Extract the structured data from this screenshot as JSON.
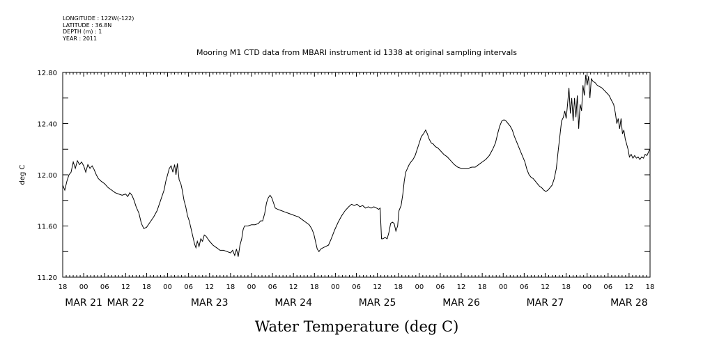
{
  "metadata": {
    "longitude": "LONGITUDE : 122W(-122)",
    "latitude": "LATITUDE : 36.8N",
    "depth": "DEPTH (m) : 1",
    "year": "YEAR : 2011"
  },
  "chart_data": {
    "type": "line",
    "title": "Mooring M1 CTD data from MBARI instrument id 1338 at original sampling intervals",
    "xlabel": "Water Temperature (deg C)",
    "ylabel": "deg C",
    "ylim": [
      11.2,
      12.8
    ],
    "yticks": [
      "11.20",
      "11.60",
      "12.00",
      "12.40",
      "12.80"
    ],
    "x_unit": "hours since MAR 20 18:00",
    "xlim": [
      0,
      168
    ],
    "hour_ticks": [
      "18",
      "00",
      "06",
      "12",
      "18",
      "00",
      "06",
      "12",
      "18",
      "00",
      "06",
      "12",
      "18",
      "00",
      "06",
      "12",
      "18",
      "00",
      "06",
      "12",
      "18",
      "00",
      "06",
      "12",
      "18",
      "00",
      "06",
      "12",
      "18"
    ],
    "date_labels": [
      {
        "label": "MAR 21",
        "hour": 6
      },
      {
        "label": "MAR 22",
        "hour": 18
      },
      {
        "label": "MAR 23",
        "hour": 42
      },
      {
        "label": "MAR 24",
        "hour": 66
      },
      {
        "label": "MAR 25",
        "hour": 90
      },
      {
        "label": "MAR 26",
        "hour": 114
      },
      {
        "label": "MAR 27",
        "hour": 138
      },
      {
        "label": "MAR 28",
        "hour": 162
      }
    ],
    "series": [
      {
        "values": [
          [
            0,
            11.92
          ],
          [
            0.6,
            11.88
          ],
          [
            1.2,
            11.95
          ],
          [
            1.8,
            12.0
          ],
          [
            2.4,
            12.02
          ],
          [
            3,
            12.1
          ],
          [
            3.6,
            12.05
          ],
          [
            4.2,
            12.11
          ],
          [
            4.8,
            12.08
          ],
          [
            5.4,
            12.1
          ],
          [
            6,
            12.07
          ],
          [
            6.6,
            12.02
          ],
          [
            7.2,
            12.08
          ],
          [
            7.8,
            12.05
          ],
          [
            8.4,
            12.07
          ],
          [
            9,
            12.04
          ],
          [
            9.6,
            12.0
          ],
          [
            10.2,
            11.97
          ],
          [
            11,
            11.95
          ],
          [
            12,
            11.93
          ],
          [
            13,
            11.9
          ],
          [
            14,
            11.88
          ],
          [
            15,
            11.86
          ],
          [
            16,
            11.85
          ],
          [
            17,
            11.84
          ],
          [
            18,
            11.85
          ],
          [
            18.6,
            11.83
          ],
          [
            19.2,
            11.86
          ],
          [
            19.8,
            11.84
          ],
          [
            20.4,
            11.8
          ],
          [
            21,
            11.75
          ],
          [
            21.8,
            11.7
          ],
          [
            22.5,
            11.62
          ],
          [
            23.2,
            11.58
          ],
          [
            24,
            11.59
          ],
          [
            25,
            11.63
          ],
          [
            26,
            11.67
          ],
          [
            27,
            11.72
          ],
          [
            28,
            11.8
          ],
          [
            29,
            11.88
          ],
          [
            29.5,
            11.95
          ],
          [
            30,
            12.0
          ],
          [
            30.5,
            12.05
          ],
          [
            31,
            12.07
          ],
          [
            31.5,
            12.02
          ],
          [
            32,
            12.08
          ],
          [
            32.4,
            12.0
          ],
          [
            32.8,
            12.09
          ],
          [
            33.3,
            11.96
          ],
          [
            33.8,
            11.93
          ],
          [
            34.2,
            11.88
          ],
          [
            34.7,
            11.8
          ],
          [
            35.2,
            11.75
          ],
          [
            35.7,
            11.68
          ],
          [
            36.2,
            11.64
          ],
          [
            36.7,
            11.58
          ],
          [
            37.2,
            11.52
          ],
          [
            37.7,
            11.46
          ],
          [
            38.1,
            11.43
          ],
          [
            38.5,
            11.48
          ],
          [
            39,
            11.44
          ],
          [
            39.5,
            11.5
          ],
          [
            40,
            11.48
          ],
          [
            40.5,
            11.53
          ],
          [
            41,
            11.52
          ],
          [
            41.5,
            11.5
          ],
          [
            42,
            11.48
          ],
          [
            43,
            11.45
          ],
          [
            44,
            11.43
          ],
          [
            45,
            11.41
          ],
          [
            46,
            11.41
          ],
          [
            47,
            11.4
          ],
          [
            48,
            11.39
          ],
          [
            48.6,
            11.41
          ],
          [
            49.2,
            11.37
          ],
          [
            49.7,
            11.42
          ],
          [
            50.2,
            11.36
          ],
          [
            50.7,
            11.45
          ],
          [
            51.2,
            11.5
          ],
          [
            51.6,
            11.57
          ],
          [
            52,
            11.6
          ],
          [
            53,
            11.6
          ],
          [
            54,
            11.61
          ],
          [
            55,
            11.61
          ],
          [
            56,
            11.62
          ],
          [
            56.6,
            11.64
          ],
          [
            57.2,
            11.64
          ],
          [
            57.8,
            11.7
          ],
          [
            58.3,
            11.78
          ],
          [
            58.8,
            11.82
          ],
          [
            59.3,
            11.84
          ],
          [
            59.8,
            11.82
          ],
          [
            60.3,
            11.78
          ],
          [
            60.8,
            11.74
          ],
          [
            61.5,
            11.73
          ],
          [
            62.5,
            11.72
          ],
          [
            63.5,
            11.71
          ],
          [
            64.5,
            11.7
          ],
          [
            65.5,
            11.69
          ],
          [
            66.5,
            11.68
          ],
          [
            67.5,
            11.67
          ],
          [
            68.5,
            11.65
          ],
          [
            69.5,
            11.63
          ],
          [
            70.5,
            11.61
          ],
          [
            71.2,
            11.58
          ],
          [
            71.8,
            11.54
          ],
          [
            72.3,
            11.48
          ],
          [
            72.8,
            11.42
          ],
          [
            73.3,
            11.4
          ],
          [
            73.8,
            11.42
          ],
          [
            74.5,
            11.43
          ],
          [
            75.2,
            11.44
          ],
          [
            76,
            11.45
          ],
          [
            76.8,
            11.5
          ],
          [
            77.8,
            11.57
          ],
          [
            78.8,
            11.63
          ],
          [
            79.8,
            11.68
          ],
          [
            80.8,
            11.72
          ],
          [
            81.8,
            11.75
          ],
          [
            82.6,
            11.77
          ],
          [
            83.4,
            11.76
          ],
          [
            84.2,
            11.77
          ],
          [
            85,
            11.75
          ],
          [
            85.8,
            11.76
          ],
          [
            86.6,
            11.74
          ],
          [
            87.4,
            11.75
          ],
          [
            88.2,
            11.74
          ],
          [
            89,
            11.75
          ],
          [
            89.8,
            11.74
          ],
          [
            90.4,
            11.73
          ],
          [
            90.8,
            11.74
          ],
          [
            91.2,
            11.5
          ],
          [
            91.6,
            11.5
          ],
          [
            92.2,
            11.51
          ],
          [
            92.8,
            11.5
          ],
          [
            93.3,
            11.55
          ],
          [
            93.8,
            11.62
          ],
          [
            94.3,
            11.63
          ],
          [
            94.8,
            11.62
          ],
          [
            95.3,
            11.56
          ],
          [
            95.8,
            11.6
          ],
          [
            96.2,
            11.72
          ],
          [
            96.8,
            11.76
          ],
          [
            97.3,
            11.85
          ],
          [
            97.7,
            11.95
          ],
          [
            98.1,
            12.02
          ],
          [
            98.6,
            12.05
          ],
          [
            99.1,
            12.08
          ],
          [
            99.6,
            12.1
          ],
          [
            100.2,
            12.12
          ],
          [
            100.8,
            12.15
          ],
          [
            101.4,
            12.2
          ],
          [
            102,
            12.25
          ],
          [
            102.6,
            12.3
          ],
          [
            103.2,
            12.32
          ],
          [
            103.8,
            12.35
          ],
          [
            104.3,
            12.32
          ],
          [
            104.8,
            12.28
          ],
          [
            105.4,
            12.25
          ],
          [
            106,
            12.24
          ],
          [
            106.6,
            12.22
          ],
          [
            107.3,
            12.21
          ],
          [
            108,
            12.19
          ],
          [
            109,
            12.16
          ],
          [
            110,
            12.14
          ],
          [
            111,
            12.11
          ],
          [
            112,
            12.08
          ],
          [
            113,
            12.06
          ],
          [
            114,
            12.05
          ],
          [
            115,
            12.05
          ],
          [
            116,
            12.05
          ],
          [
            117,
            12.06
          ],
          [
            118,
            12.06
          ],
          [
            119,
            12.08
          ],
          [
            120,
            12.1
          ],
          [
            121,
            12.12
          ],
          [
            122,
            12.15
          ],
          [
            123,
            12.2
          ],
          [
            123.8,
            12.25
          ],
          [
            124.4,
            12.32
          ],
          [
            125,
            12.38
          ],
          [
            125.6,
            12.42
          ],
          [
            126.2,
            12.43
          ],
          [
            126.8,
            12.42
          ],
          [
            127.4,
            12.4
          ],
          [
            128,
            12.38
          ],
          [
            128.6,
            12.35
          ],
          [
            129.2,
            12.3
          ],
          [
            129.8,
            12.26
          ],
          [
            130.4,
            12.22
          ],
          [
            131,
            12.18
          ],
          [
            131.6,
            12.14
          ],
          [
            132.2,
            12.1
          ],
          [
            132.8,
            12.04
          ],
          [
            133.4,
            12.0
          ],
          [
            134,
            11.98
          ],
          [
            134.6,
            11.97
          ],
          [
            135.2,
            11.95
          ],
          [
            135.8,
            11.93
          ],
          [
            136.4,
            11.91
          ],
          [
            137,
            11.9
          ],
          [
            137.6,
            11.88
          ],
          [
            138.2,
            11.87
          ],
          [
            138.8,
            11.88
          ],
          [
            139.4,
            11.9
          ],
          [
            140,
            11.92
          ],
          [
            140.6,
            11.97
          ],
          [
            141.2,
            12.05
          ],
          [
            141.7,
            12.18
          ],
          [
            142.2,
            12.3
          ],
          [
            142.7,
            12.42
          ],
          [
            143.2,
            12.45
          ],
          [
            143.6,
            12.5
          ],
          [
            144,
            12.44
          ],
          [
            144.4,
            12.55
          ],
          [
            144.8,
            12.68
          ],
          [
            145.2,
            12.48
          ],
          [
            145.6,
            12.6
          ],
          [
            146,
            12.42
          ],
          [
            146.4,
            12.6
          ],
          [
            146.8,
            12.45
          ],
          [
            147.2,
            12.62
          ],
          [
            147.6,
            12.36
          ],
          [
            148,
            12.55
          ],
          [
            148.4,
            12.5
          ],
          [
            148.8,
            12.7
          ],
          [
            149.2,
            12.62
          ],
          [
            149.6,
            12.78
          ],
          [
            150,
            12.7
          ],
          [
            150.4,
            12.77
          ],
          [
            150.8,
            12.6
          ],
          [
            151.2,
            12.75
          ],
          [
            151.7,
            12.73
          ],
          [
            152.3,
            12.72
          ],
          [
            152.9,
            12.7
          ],
          [
            153.5,
            12.69
          ],
          [
            154.2,
            12.68
          ],
          [
            154.9,
            12.66
          ],
          [
            155.6,
            12.64
          ],
          [
            156.3,
            12.62
          ],
          [
            157,
            12.58
          ],
          [
            157.6,
            12.55
          ],
          [
            158.1,
            12.48
          ],
          [
            158.5,
            12.4
          ],
          [
            158.9,
            12.44
          ],
          [
            159.3,
            12.36
          ],
          [
            159.7,
            12.44
          ],
          [
            160.1,
            12.32
          ],
          [
            160.5,
            12.35
          ],
          [
            160.9,
            12.28
          ],
          [
            161.3,
            12.24
          ],
          [
            161.7,
            12.2
          ],
          [
            162.1,
            12.14
          ],
          [
            162.6,
            12.16
          ],
          [
            163.1,
            12.13
          ],
          [
            163.6,
            12.15
          ],
          [
            164.1,
            12.13
          ],
          [
            164.6,
            12.14
          ],
          [
            165.1,
            12.12
          ],
          [
            165.6,
            12.14
          ],
          [
            166.1,
            12.13
          ],
          [
            166.6,
            12.16
          ],
          [
            167.1,
            12.15
          ],
          [
            167.6,
            12.18
          ],
          [
            168,
            12.2
          ]
        ]
      }
    ]
  }
}
